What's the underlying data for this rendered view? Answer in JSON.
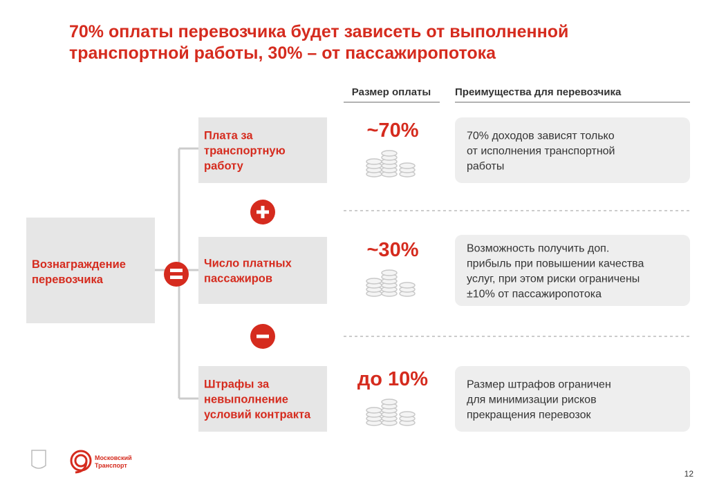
{
  "title": [
    "70% оплаты перевозчика будет зависеть от выполненной",
    "транспортной работы, 30% – от пассажиропотока"
  ],
  "headers": {
    "payment": "Размер оплаты",
    "benefits": "Преимущества для перевозчика"
  },
  "total": [
    "Вознаграждение",
    "перевозчика"
  ],
  "rows": [
    {
      "label": [
        "Плата за",
        "транспортную",
        "работу"
      ],
      "amount": "~70%",
      "description": [
        "70% доходов зависят только",
        "от исполнения транспортной",
        "работы"
      ]
    },
    {
      "label": [
        "Число платных",
        "пассажиров"
      ],
      "amount": "~30%",
      "description": [
        "Возможность получить доп.",
        "прибыль при повышении качества",
        "услуг, при этом риски ограничены",
        "±10% от пассажиропотока"
      ]
    },
    {
      "label": [
        "Штрафы за",
        "невыполнение",
        "условий контракта"
      ],
      "amount": "до 10%",
      "description": [
        "Размер штрафов ограничен",
        "для минимизации рисков",
        "прекращения перевозок"
      ]
    }
  ],
  "footer": {
    "logo": [
      "Московский",
      "Транспорт"
    ],
    "page": "12"
  }
}
